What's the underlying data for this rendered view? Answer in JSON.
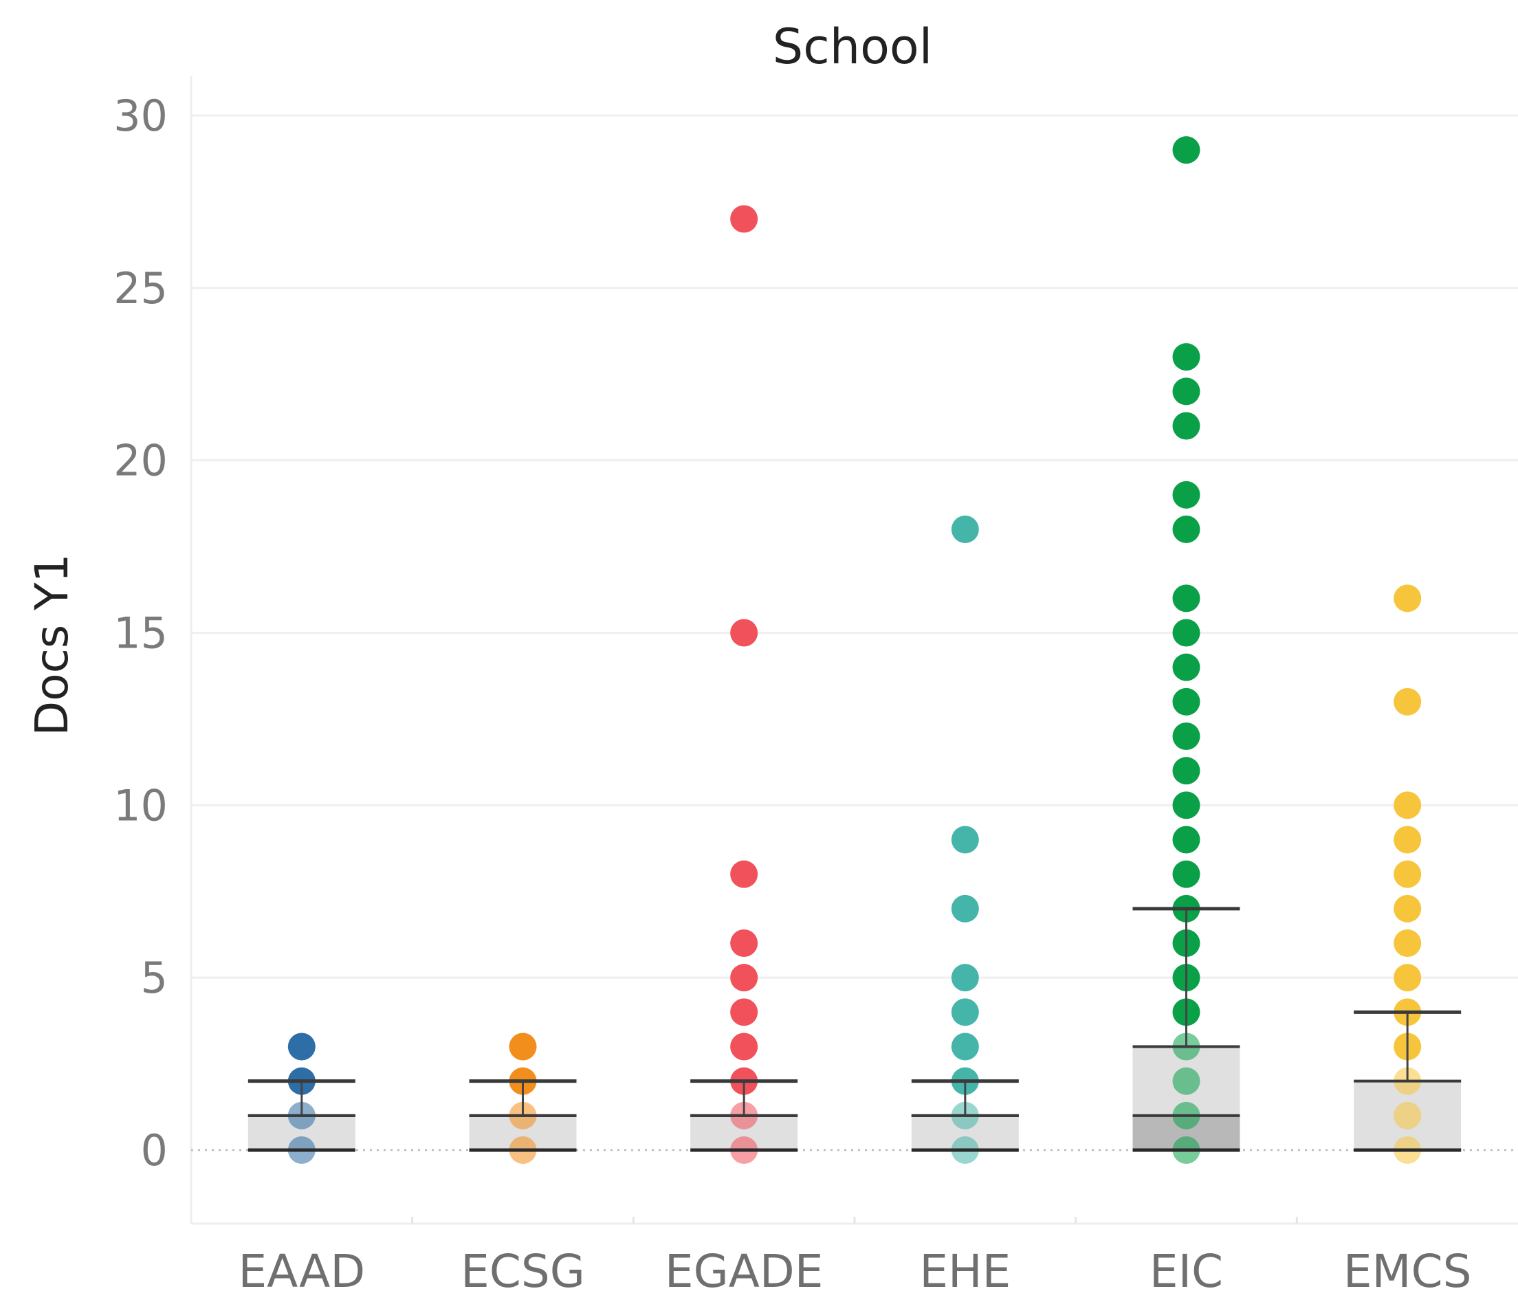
{
  "chart_data": {
    "type": "box-and-dot",
    "title": "School",
    "xlabel": "",
    "ylabel": "Docs Y1",
    "ylim": [
      -2,
      31
    ],
    "yticks": [
      0,
      5,
      10,
      15,
      20,
      25,
      30
    ],
    "grid": true,
    "categories": [
      "EAAD",
      "ECSG",
      "EGADE",
      "EHE",
      "EIC",
      "EMCS"
    ],
    "colors": {
      "EAAD": "#2e6ea6",
      "ECSG": "#f28e1c",
      "EGADE": "#f0515a",
      "EHE": "#45b5aa",
      "EIC": "#0aa047",
      "EMCS": "#f6c53c"
    },
    "points": {
      "EAAD": [
        0,
        1,
        2,
        3
      ],
      "ECSG": [
        0,
        1,
        2,
        3
      ],
      "EGADE": [
        0,
        1,
        2,
        3,
        4,
        5,
        6,
        8,
        15,
        27
      ],
      "EHE": [
        0,
        1,
        2,
        3,
        4,
        5,
        7,
        9,
        18
      ],
      "EIC": [
        0,
        1,
        2,
        3,
        4,
        5,
        6,
        7,
        8,
        9,
        10,
        11,
        12,
        13,
        14,
        15,
        16,
        18,
        19,
        21,
        22,
        23,
        29
      ],
      "EMCS": [
        0,
        1,
        2,
        3,
        4,
        5,
        6,
        7,
        8,
        9,
        10,
        13,
        16
      ]
    },
    "boxes": [
      {
        "category": "EAAD",
        "min": 0,
        "q1": 0,
        "median": 1,
        "q3": 1,
        "whisker_high": 2
      },
      {
        "category": "ECSG",
        "min": 0,
        "q1": 0,
        "median": 1,
        "q3": 1,
        "whisker_high": 2
      },
      {
        "category": "EGADE",
        "min": 0,
        "q1": 0,
        "median": 1,
        "q3": 1,
        "whisker_high": 2
      },
      {
        "category": "EHE",
        "min": 0,
        "q1": 0,
        "median": 1,
        "q3": 1,
        "whisker_high": 2
      },
      {
        "category": "EIC",
        "min": 0,
        "q1": 0,
        "median": 1,
        "q3": 3,
        "whisker_high": 7
      },
      {
        "category": "EMCS",
        "min": 0,
        "q1": 0,
        "median": 0,
        "q3": 2,
        "whisker_high": 4
      }
    ]
  }
}
